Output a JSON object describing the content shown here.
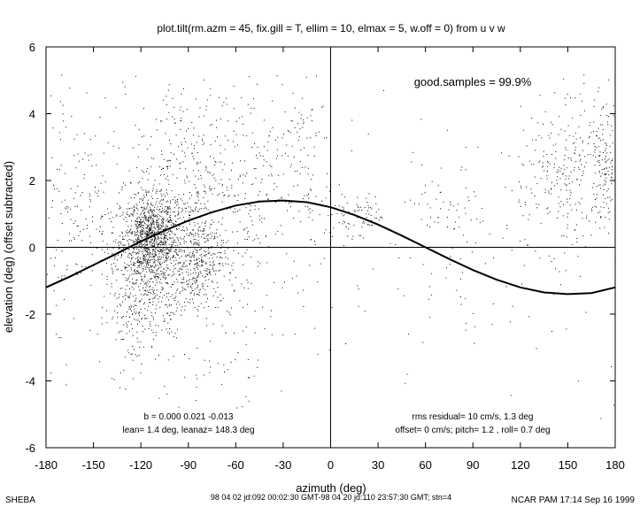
{
  "chart_data": {
    "type": "scatter",
    "title": "plot.tilt(rm.azm = 45, fix.gill = T, ellim = 10, elmax = 5, w.off = 0) from u v w",
    "xlabel": "azimuth (deg)",
    "ylabel": "elevation (deg)  (offset subtracted)",
    "xlim": [
      -180,
      180
    ],
    "ylim": [
      -6,
      6
    ],
    "x_ticks": [
      -180,
      -150,
      -120,
      -90,
      -60,
      -30,
      0,
      30,
      60,
      90,
      120,
      150,
      180
    ],
    "y_ticks": [
      -6,
      -4,
      -2,
      0,
      2,
      4,
      6
    ],
    "grid": false,
    "reference_lines": {
      "x": 0,
      "y": 0
    },
    "fit_curve": {
      "name": "tilt fit",
      "x": [
        -180,
        -165,
        -150,
        -135,
        -120,
        -105,
        -90,
        -75,
        -60,
        -45,
        -30,
        -15,
        0,
        15,
        30,
        45,
        60,
        75,
        90,
        105,
        120,
        135,
        150,
        165,
        180
      ],
      "y": [
        -1.2,
        -0.88,
        -0.53,
        -0.18,
        0.18,
        0.5,
        0.8,
        1.05,
        1.25,
        1.37,
        1.4,
        1.35,
        1.2,
        0.97,
        0.68,
        0.35,
        0.0,
        -0.35,
        -0.68,
        -0.97,
        -1.2,
        -1.35,
        -1.4,
        -1.37,
        -1.2
      ]
    },
    "scatter_clusters": [
      {
        "x": -115,
        "y": 0.3,
        "n": 700,
        "sx": 8,
        "sy": 0.6
      },
      {
        "x": -115,
        "y": -0.6,
        "n": 350,
        "sx": 12,
        "sy": 1.0
      },
      {
        "x": -100,
        "y": 0.2,
        "n": 300,
        "sx": 14,
        "sy": 0.9
      },
      {
        "x": -85,
        "y": -0.5,
        "n": 260,
        "sx": 8,
        "sy": 0.6
      },
      {
        "x": -95,
        "y": 2.2,
        "n": 220,
        "sx": 15,
        "sy": 1.5
      },
      {
        "x": -125,
        "y": -1.8,
        "n": 120,
        "sx": 8,
        "sy": 0.9
      },
      {
        "x": -70,
        "y": 1.5,
        "n": 160,
        "sx": 14,
        "sy": 1.8
      },
      {
        "x": -50,
        "y": 2.0,
        "n": 100,
        "sx": 12,
        "sy": 1.8
      },
      {
        "x": -20,
        "y": 2.6,
        "n": 100,
        "sx": 10,
        "sy": 1.3
      },
      {
        "x": -140,
        "y": 1.0,
        "n": 140,
        "sx": 15,
        "sy": 1.6
      },
      {
        "x": -165,
        "y": 1.5,
        "n": 60,
        "sx": 10,
        "sy": 1.7
      },
      {
        "x": -80,
        "y": -2.5,
        "n": 90,
        "sx": 20,
        "sy": 1.5
      },
      {
        "x": 8,
        "y": 1.0,
        "n": 45,
        "sx": 6,
        "sy": 0.5
      },
      {
        "x": 25,
        "y": 1.0,
        "n": 35,
        "sx": 4,
        "sy": 0.3
      },
      {
        "x": 75,
        "y": 0.8,
        "n": 60,
        "sx": 12,
        "sy": 0.8
      },
      {
        "x": 135,
        "y": 2.2,
        "n": 90,
        "sx": 8,
        "sy": 0.9
      },
      {
        "x": 152,
        "y": 1.5,
        "n": 90,
        "sx": 6,
        "sy": 1.2
      },
      {
        "x": 172,
        "y": 2.5,
        "n": 150,
        "sx": 5,
        "sy": 0.9
      },
      {
        "x": 160,
        "y": 3.5,
        "n": 40,
        "sx": 8,
        "sy": 0.8
      },
      {
        "x": 0,
        "y": 0,
        "n": 250,
        "sx": 130,
        "sy": 2.6
      }
    ],
    "annotations": {
      "good_samples": "good.samples = 99.9%",
      "coef_line1": "b =  0.000  0.021 -0.013",
      "coef_line2": "lean= 1.4 deg, leanaz= 148.3 deg",
      "resid_line1": "rms residual= 10 cm/s, 1.3 deg",
      "resid_line2": "offset= 0 cm/s; pitch= 1.2 , roll= 0.7 deg"
    }
  },
  "footer": {
    "left": "SHEBA",
    "center": "98 04 02 jd:092 00:02:30 GMT-98 04 20 jd:110 23:57:30 GMT; stn=4",
    "right": "NCAR PAM 17:14 Sep 16 1999"
  }
}
